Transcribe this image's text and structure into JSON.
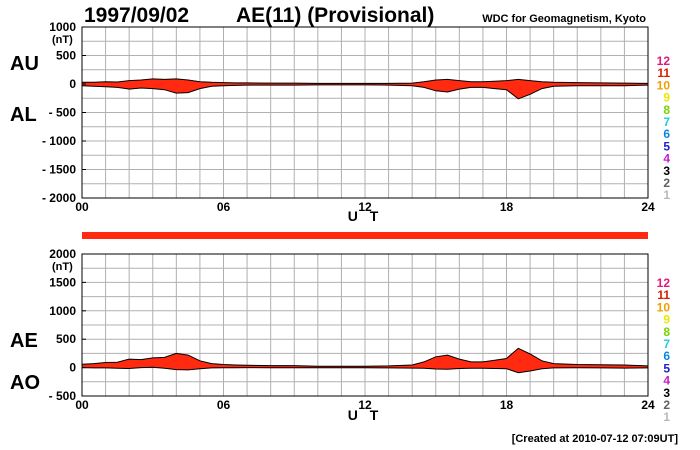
{
  "header": {
    "date": "1997/09/02",
    "title": "AE(11) (Provisional)",
    "source": "WDC for Geomagnetism, Kyoto",
    "footer": "[Created at 2010-07-12 07:09UT]"
  },
  "colors": {
    "fill": "#ff2a10",
    "line": "#000000",
    "grid": "#b0b0b0",
    "bar": "#ff2a10"
  },
  "legend": {
    "labels": [
      "12",
      "11",
      "10",
      "9",
      "8",
      "7",
      "6",
      "5",
      "4",
      "3",
      "2",
      "1"
    ],
    "colors": [
      "#e0197a",
      "#d81d00",
      "#f29f00",
      "#e8e800",
      "#7ad100",
      "#20cce0",
      "#0a86e0",
      "#2020c8",
      "#c81ec8",
      "#000000",
      "#606060",
      "#b8b8b8"
    ]
  },
  "chart_data": [
    {
      "type": "area",
      "ylabels": [
        "AU",
        "AL"
      ],
      "unit_label": "(nT)",
      "xlabel": "U T",
      "xlim": [
        0,
        24
      ],
      "ylim": [
        -2000,
        1000
      ],
      "xticks": [
        0,
        6,
        12,
        18,
        24
      ],
      "xtick_labels": [
        "00",
        "06",
        "12",
        "18",
        "24"
      ],
      "yticks": [
        1000,
        500,
        0,
        -500,
        -1000,
        -1500,
        -2000
      ],
      "ytick_labels": [
        "1000",
        "500",
        "0",
        "- 500",
        "- 1000",
        "- 1500",
        "- 2000"
      ],
      "series": [
        {
          "x": [
            0,
            0.5,
            1,
            1.5,
            2,
            2.5,
            3,
            3.5,
            4,
            4.5,
            5,
            5.5,
            6,
            6.5,
            7,
            8,
            9,
            10,
            11,
            12,
            13,
            14,
            14.5,
            15,
            15.5,
            16,
            16.5,
            17,
            17.5,
            18,
            18.5,
            19,
            19.5,
            20,
            21,
            22,
            23,
            24
          ],
          "values": [
            30,
            30,
            40,
            35,
            60,
            70,
            90,
            80,
            90,
            70,
            40,
            30,
            25,
            20,
            20,
            15,
            15,
            10,
            10,
            10,
            10,
            15,
            40,
            70,
            80,
            60,
            40,
            40,
            50,
            60,
            80,
            60,
            40,
            30,
            25,
            20,
            15,
            10
          ]
        },
        {
          "x": [
            0,
            0.5,
            1,
            1.5,
            2,
            2.5,
            3,
            3.5,
            4,
            4.5,
            5,
            5.5,
            6,
            6.5,
            7,
            8,
            9,
            10,
            11,
            12,
            13,
            14,
            14.5,
            15,
            15.5,
            16,
            16.5,
            17,
            17.5,
            18,
            18.5,
            19,
            19.5,
            20,
            21,
            22,
            23,
            24
          ],
          "values": [
            -30,
            -40,
            -50,
            -60,
            -90,
            -70,
            -80,
            -100,
            -160,
            -150,
            -80,
            -40,
            -30,
            -25,
            -20,
            -20,
            -20,
            -15,
            -15,
            -15,
            -20,
            -30,
            -60,
            -120,
            -140,
            -90,
            -60,
            -60,
            -80,
            -100,
            -260,
            -180,
            -80,
            -40,
            -30,
            -30,
            -30,
            -20
          ]
        }
      ]
    },
    {
      "type": "area",
      "ylabels": [
        "AE",
        "AO"
      ],
      "unit_label": "(nT)",
      "xlabel": "U T",
      "xlim": [
        0,
        24
      ],
      "ylim": [
        -500,
        2000
      ],
      "xticks": [
        0,
        6,
        12,
        18,
        24
      ],
      "xtick_labels": [
        "00",
        "06",
        "12",
        "18",
        "24"
      ],
      "yticks": [
        2000,
        1500,
        1000,
        500,
        0,
        -500
      ],
      "ytick_labels": [
        "2000",
        "1500",
        "1000",
        "500",
        "0",
        "- 500"
      ],
      "series": [
        {
          "x": [
            0,
            0.5,
            1,
            1.5,
            2,
            2.5,
            3,
            3.5,
            4,
            4.5,
            5,
            5.5,
            6,
            6.5,
            7,
            8,
            9,
            10,
            11,
            12,
            13,
            14,
            14.5,
            15,
            15.5,
            16,
            16.5,
            17,
            17.5,
            18,
            18.5,
            19,
            19.5,
            20,
            21,
            22,
            23,
            24
          ],
          "values": [
            60,
            70,
            90,
            95,
            150,
            140,
            170,
            180,
            250,
            220,
            120,
            70,
            55,
            45,
            40,
            35,
            35,
            25,
            25,
            25,
            30,
            45,
            100,
            190,
            220,
            150,
            100,
            100,
            130,
            160,
            340,
            240,
            120,
            70,
            55,
            50,
            45,
            30
          ]
        },
        {
          "x": [
            0,
            0.5,
            1,
            1.5,
            2,
            2.5,
            3,
            3.5,
            4,
            4.5,
            5,
            5.5,
            6,
            6.5,
            7,
            8,
            9,
            10,
            11,
            12,
            13,
            14,
            14.5,
            15,
            15.5,
            16,
            16.5,
            17,
            17.5,
            18,
            18.5,
            19,
            19.5,
            20,
            21,
            22,
            23,
            24
          ],
          "values": [
            0,
            -5,
            -5,
            -12,
            -15,
            0,
            5,
            -10,
            -35,
            -40,
            -20,
            -5,
            -3,
            -3,
            0,
            -3,
            -3,
            -3,
            -3,
            -3,
            -5,
            -8,
            -10,
            -25,
            -30,
            -15,
            -10,
            -10,
            -15,
            -20,
            -90,
            -60,
            -20,
            -5,
            -3,
            -5,
            -8,
            -5
          ]
        }
      ]
    }
  ]
}
